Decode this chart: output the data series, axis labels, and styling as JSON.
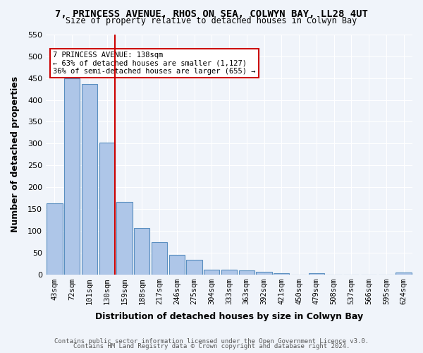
{
  "title": "7, PRINCESS AVENUE, RHOS ON SEA, COLWYN BAY, LL28 4UT",
  "subtitle": "Size of property relative to detached houses in Colwyn Bay",
  "xlabel": "Distribution of detached houses by size in Colwyn Bay",
  "ylabel": "Number of detached properties",
  "categories": [
    "43sqm",
    "72sqm",
    "101sqm",
    "130sqm",
    "159sqm",
    "188sqm",
    "217sqm",
    "246sqm",
    "275sqm",
    "304sqm",
    "333sqm",
    "363sqm",
    "392sqm",
    "421sqm",
    "450sqm",
    "479sqm",
    "508sqm",
    "537sqm",
    "566sqm",
    "595sqm",
    "624sqm"
  ],
  "values": [
    163,
    449,
    436,
    302,
    166,
    106,
    73,
    45,
    33,
    10,
    10,
    9,
    6,
    3,
    0,
    2,
    0,
    0,
    0,
    0,
    4
  ],
  "bar_color": "#aec6e8",
  "bar_edge_color": "#5a8fc0",
  "background_color": "#f0f4fa",
  "grid_color": "#ffffff",
  "property_size": 138,
  "property_bin_index": 3,
  "redline_x": 3,
  "annotation_text": "7 PRINCESS AVENUE: 138sqm\n← 63% of detached houses are smaller (1,127)\n36% of semi-detached houses are larger (655) →",
  "annotation_box_color": "#ffffff",
  "annotation_box_edge": "#cc0000",
  "redline_color": "#cc0000",
  "footer1": "Contains HM Land Registry data © Crown copyright and database right 2024.",
  "footer2": "Contains public sector information licensed under the Open Government Licence v3.0.",
  "ylim": [
    0,
    550
  ],
  "figsize": [
    6.0,
    5.0
  ],
  "dpi": 100
}
